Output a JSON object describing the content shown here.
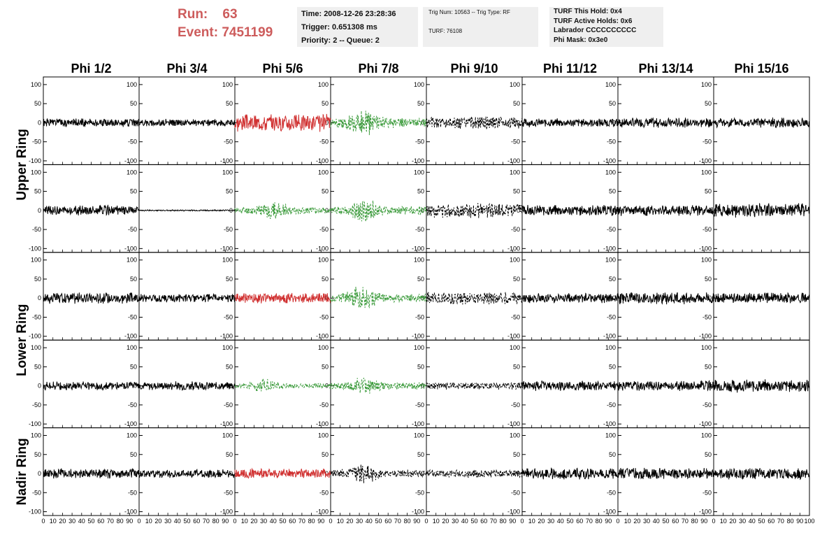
{
  "header": {
    "run_label": "Run:",
    "run_value": "63",
    "event_label": "Event:",
    "event_value": "7451199",
    "time": "Time: 2008-12-26 23:28:36",
    "trigger": "Trigger: 0.651308 ms",
    "priority": "Priority: 2 -- Queue: 2",
    "trig_num": "Trig Num: 10563 -- Trig Type: RF",
    "turf": "TURF: 76108",
    "turf_this_hold": "TURF This Hold: 0x4",
    "turf_active_holds": "TURF Active Holds: 0x6",
    "labrador": "Labrador CCCCCCCCCC",
    "phi_mask": "Phi Mask: 0x3e0"
  },
  "chart_data": {
    "type": "line",
    "columns": [
      "Phi 1/2",
      "Phi 3/4",
      "Phi 5/6",
      "Phi 7/8",
      "Phi 9/10",
      "Phi 11/12",
      "Phi 13/14",
      "Phi 15/16"
    ],
    "rows": [
      "Upper Ring",
      "Upper Ring",
      "Lower Ring",
      "Lower Ring",
      "Nadir Ring"
    ],
    "row_labels": [
      "Upper Ring",
      "Lower Ring",
      "Nadir Ring"
    ],
    "xlim": [
      0,
      100
    ],
    "ylim": [
      -110,
      120
    ],
    "x_ticks": [
      "0",
      "10",
      "20",
      "30",
      "40",
      "50",
      "60",
      "70",
      "80",
      "90",
      "100"
    ],
    "y_ticks": [
      "100",
      "50",
      "0",
      "-50",
      "-100"
    ],
    "colors": {
      "black": "#000000",
      "red": "#d03030",
      "green": "#3a9a3a"
    },
    "panels": [
      {
        "row": 0,
        "col": 0,
        "color": "black",
        "style": "solid",
        "amplitude": 12,
        "seed": 1
      },
      {
        "row": 0,
        "col": 1,
        "color": "black",
        "style": "solid",
        "amplitude": 10,
        "seed": 2
      },
      {
        "row": 0,
        "col": 2,
        "color": "red",
        "style": "solid",
        "amplitude": 25,
        "seed": 3
      },
      {
        "row": 0,
        "col": 3,
        "color": "green",
        "style": "dashed",
        "amplitude": 40,
        "peak": 35,
        "seed": 4
      },
      {
        "row": 0,
        "col": 4,
        "color": "black",
        "style": "dashed",
        "amplitude": 18,
        "seed": 5
      },
      {
        "row": 0,
        "col": 5,
        "color": "black",
        "style": "solid",
        "amplitude": 12,
        "seed": 6
      },
      {
        "row": 0,
        "col": 6,
        "color": "black",
        "style": "solid",
        "amplitude": 14,
        "seed": 7
      },
      {
        "row": 0,
        "col": 7,
        "color": "black",
        "style": "solid",
        "amplitude": 14,
        "seed": 8
      },
      {
        "row": 1,
        "col": 0,
        "color": "black",
        "style": "solid",
        "amplitude": 14,
        "seed": 9
      },
      {
        "row": 1,
        "col": 1,
        "color": "black",
        "style": "solid",
        "amplitude": 2,
        "seed": 10
      },
      {
        "row": 1,
        "col": 2,
        "color": "green",
        "style": "dashed",
        "amplitude": 28,
        "peak": 40,
        "seed": 11
      },
      {
        "row": 1,
        "col": 3,
        "color": "green",
        "style": "dashed",
        "amplitude": 35,
        "peak": 35,
        "seed": 12
      },
      {
        "row": 1,
        "col": 4,
        "color": "black",
        "style": "dashed",
        "amplitude": 20,
        "seed": 13
      },
      {
        "row": 1,
        "col": 5,
        "color": "black",
        "style": "solid",
        "amplitude": 15,
        "seed": 14
      },
      {
        "row": 1,
        "col": 6,
        "color": "black",
        "style": "solid",
        "amplitude": 15,
        "seed": 15
      },
      {
        "row": 1,
        "col": 7,
        "color": "black",
        "style": "solid",
        "amplitude": 20,
        "seed": 16
      },
      {
        "row": 2,
        "col": 0,
        "color": "black",
        "style": "solid",
        "amplitude": 16,
        "seed": 17
      },
      {
        "row": 2,
        "col": 1,
        "color": "black",
        "style": "solid",
        "amplitude": 12,
        "seed": 18
      },
      {
        "row": 2,
        "col": 2,
        "color": "red",
        "style": "solid",
        "amplitude": 15,
        "seed": 19
      },
      {
        "row": 2,
        "col": 3,
        "color": "green",
        "style": "dashed",
        "amplitude": 35,
        "peak": 32,
        "seed": 20
      },
      {
        "row": 2,
        "col": 4,
        "color": "black",
        "style": "dashed",
        "amplitude": 18,
        "seed": 21
      },
      {
        "row": 2,
        "col": 5,
        "color": "black",
        "style": "solid",
        "amplitude": 14,
        "seed": 22
      },
      {
        "row": 2,
        "col": 6,
        "color": "black",
        "style": "solid",
        "amplitude": 18,
        "seed": 23
      },
      {
        "row": 2,
        "col": 7,
        "color": "black",
        "style": "solid",
        "amplitude": 15,
        "seed": 24
      },
      {
        "row": 3,
        "col": 0,
        "color": "black",
        "style": "solid",
        "amplitude": 12,
        "seed": 25
      },
      {
        "row": 3,
        "col": 1,
        "color": "black",
        "style": "solid",
        "amplitude": 12,
        "seed": 26
      },
      {
        "row": 3,
        "col": 2,
        "color": "green",
        "style": "dashed",
        "amplitude": 20,
        "peak": 30,
        "seed": 27
      },
      {
        "row": 3,
        "col": 3,
        "color": "green",
        "style": "dashed",
        "amplitude": 28,
        "peak": 35,
        "seed": 28
      },
      {
        "row": 3,
        "col": 4,
        "color": "black",
        "style": "dashed",
        "amplitude": 10,
        "seed": 29
      },
      {
        "row": 3,
        "col": 5,
        "color": "black",
        "style": "solid",
        "amplitude": 14,
        "seed": 30
      },
      {
        "row": 3,
        "col": 6,
        "color": "black",
        "style": "solid",
        "amplitude": 14,
        "seed": 31
      },
      {
        "row": 3,
        "col": 7,
        "color": "black",
        "style": "solid",
        "amplitude": 18,
        "seed": 32
      },
      {
        "row": 4,
        "col": 0,
        "color": "black",
        "style": "solid",
        "amplitude": 14,
        "seed": 33
      },
      {
        "row": 4,
        "col": 1,
        "color": "black",
        "style": "solid",
        "amplitude": 12,
        "seed": 34
      },
      {
        "row": 4,
        "col": 2,
        "color": "red",
        "style": "solid",
        "amplitude": 14,
        "seed": 35
      },
      {
        "row": 4,
        "col": 3,
        "color": "black",
        "style": "dashed",
        "amplitude": 30,
        "peak": 35,
        "seed": 36
      },
      {
        "row": 4,
        "col": 4,
        "color": "black",
        "style": "dashed",
        "amplitude": 12,
        "seed": 37
      },
      {
        "row": 4,
        "col": 5,
        "color": "black",
        "style": "solid",
        "amplitude": 16,
        "seed": 38
      },
      {
        "row": 4,
        "col": 6,
        "color": "black",
        "style": "solid",
        "amplitude": 16,
        "seed": 39
      },
      {
        "row": 4,
        "col": 7,
        "color": "black",
        "style": "solid",
        "amplitude": 16,
        "seed": 40
      }
    ]
  }
}
